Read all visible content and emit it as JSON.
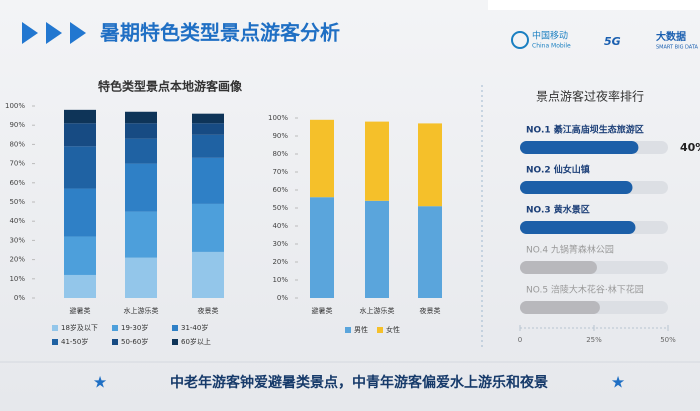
{
  "header": {
    "title": "暑期特色类型景点游客分析",
    "logo1": "中国移动",
    "logo1_sub": "China Mobile",
    "logo2": "5G",
    "logo3": "大数据",
    "logo3_sub": "SMART BIG DATA"
  },
  "footer": "中老年游客钟爱避暑类景点，中青年游客偏爱水上游乐和夜景",
  "chart_data": [
    {
      "type": "stacked_bar",
      "title": "特色类型景点本地游客画像",
      "categories": [
        "避暑类",
        "水上游乐类",
        "夜景类"
      ],
      "series": [
        {
          "name": "18岁及以下",
          "color": "#93c6ea",
          "values": [
            12,
            21,
            24
          ]
        },
        {
          "name": "19-30岁",
          "color": "#4d9fdb",
          "values": [
            20,
            24,
            25
          ]
        },
        {
          "name": "31-40岁",
          "color": "#2f80c6",
          "values": [
            25,
            25,
            24
          ]
        },
        {
          "name": "41-50岁",
          "color": "#1f62a3",
          "values": [
            22,
            13,
            12
          ]
        },
        {
          "name": "50-60岁",
          "color": "#174b83",
          "values": [
            12,
            8,
            6
          ]
        },
        {
          "name": "60岁以上",
          "color": "#0e3458",
          "values": [
            7,
            6,
            5
          ]
        }
      ],
      "ylim": [
        0,
        100
      ],
      "yticks": [
        {
          "value": 0,
          "label": "0%"
        },
        {
          "value": 10,
          "label": "10%"
        },
        {
          "value": 20,
          "label": "20%"
        },
        {
          "value": 30,
          "label": "30%"
        },
        {
          "value": 40,
          "label": "40%"
        },
        {
          "value": 50,
          "label": "50%"
        },
        {
          "value": 60,
          "label": "60%"
        },
        {
          "value": 70,
          "label": "70%"
        },
        {
          "value": 80,
          "label": "80%"
        },
        {
          "value": 90,
          "label": "90%"
        },
        {
          "value": 100,
          "label": "100%"
        }
      ]
    },
    {
      "type": "stacked_bar",
      "categories": [
        "避暑类",
        "水上游乐类",
        "夜景类"
      ],
      "series": [
        {
          "name": "男性",
          "color": "#5aa5dc",
          "values": [
            56,
            54,
            51
          ]
        },
        {
          "name": "女性",
          "color": "#f5c02a",
          "values": [
            43,
            44,
            46
          ]
        }
      ],
      "ylim": [
        0,
        100
      ],
      "yticks": [
        {
          "value": 0,
          "label": "0%"
        },
        {
          "value": 10,
          "label": "10%"
        },
        {
          "value": 20,
          "label": "20%"
        },
        {
          "value": 30,
          "label": "30%"
        },
        {
          "value": 40,
          "label": "40%"
        },
        {
          "value": 50,
          "label": "50%"
        },
        {
          "value": 60,
          "label": "60%"
        },
        {
          "value": 70,
          "label": "70%"
        },
        {
          "value": 80,
          "label": "80%"
        },
        {
          "value": 90,
          "label": "90%"
        },
        {
          "value": 100,
          "label": "100%"
        }
      ]
    },
    {
      "type": "hbar",
      "title": "景点游客过夜率排行",
      "categories": [
        "NO.1 綦江高庙坝生态旅游区",
        "NO.2 仙女山镇",
        "NO.3 黄水景区",
        "NO.4 九锅箐森林公园",
        "NO.5 涪陵大木花谷·林下花园"
      ],
      "values": [
        40,
        38,
        39,
        26,
        27
      ],
      "value_labels": [
        "40%",
        null,
        null,
        null,
        null
      ],
      "colors": [
        "#1c5fa8",
        "#1c5fa8",
        "#1c5fa8",
        "#b8b8bc",
        "#b8b8bc"
      ],
      "xlim": [
        0,
        50
      ],
      "xticks": [
        0,
        {
          "value": 25,
          "label": "25%"
        },
        {
          "value": 50,
          "label": "50%"
        }
      ]
    }
  ]
}
